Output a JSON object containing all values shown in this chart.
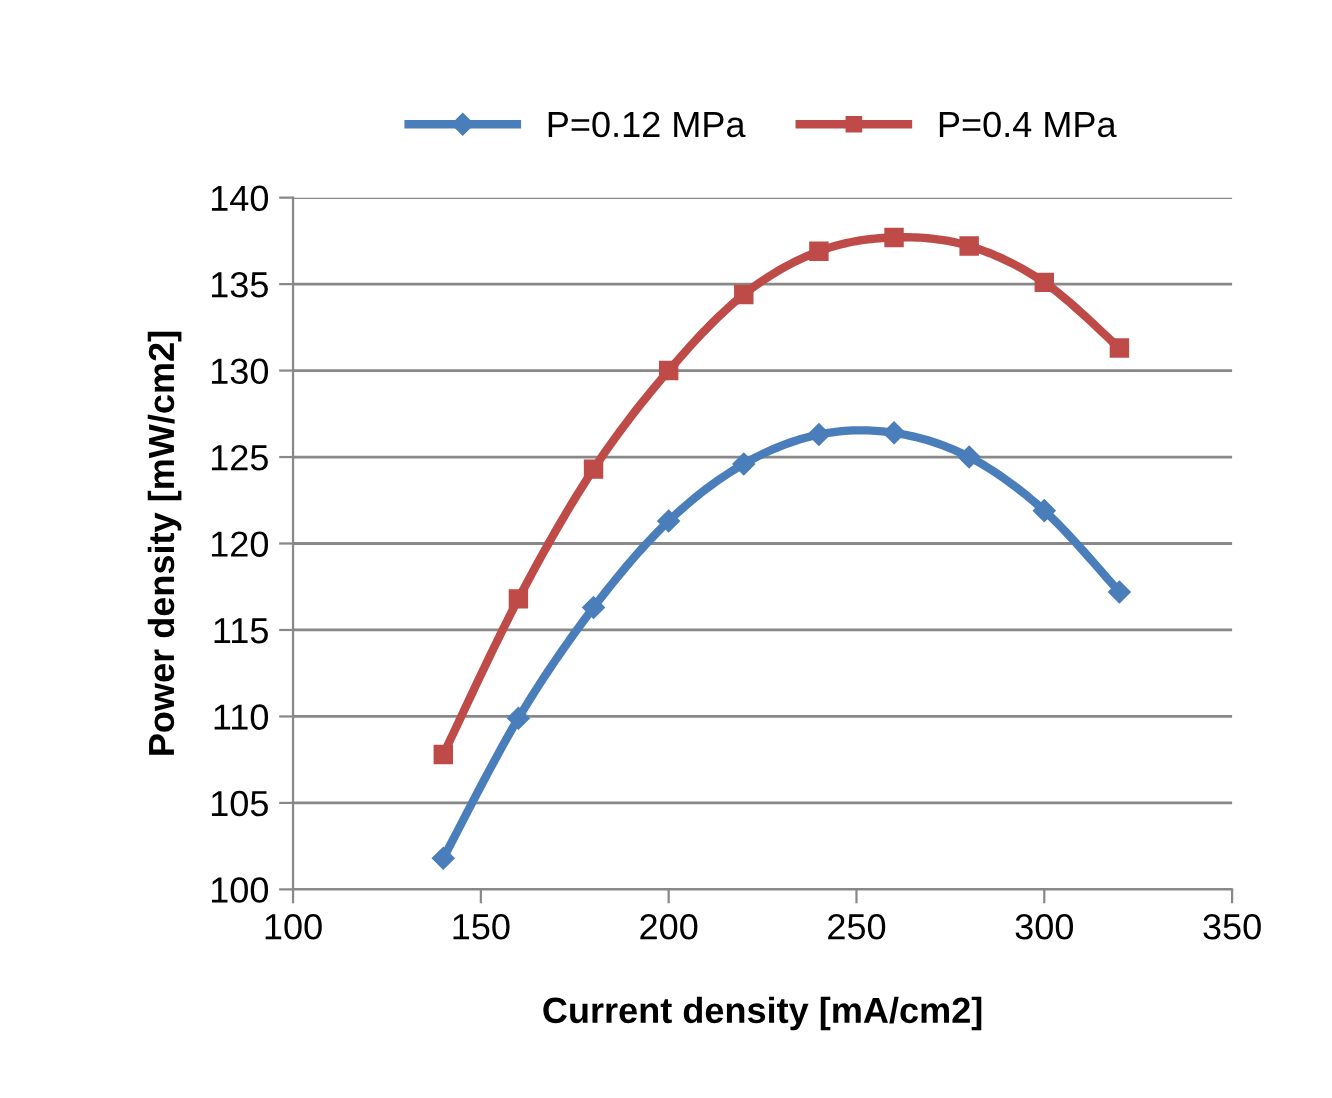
{
  "chart_data": {
    "type": "line",
    "xlabel": "Current density [mA/cm2]",
    "ylabel": "Power density [mW/cm2]",
    "x": [
      140,
      160,
      180,
      200,
      220,
      240,
      260,
      280,
      300,
      320
    ],
    "series": [
      {
        "name": "P=0.12 MPa",
        "color": "#4a7ebb",
        "marker": "diamond",
        "values": [
          101.8,
          109.9,
          116.3,
          121.3,
          124.6,
          126.3,
          126.4,
          125.0,
          121.9,
          117.2
        ]
      },
      {
        "name": "P=0.4 MPa",
        "color": "#be4b48",
        "marker": "square",
        "values": [
          107.8,
          116.8,
          124.3,
          130.0,
          134.4,
          136.9,
          137.7,
          137.2,
          135.1,
          131.3
        ]
      }
    ],
    "xlim": [
      100,
      350
    ],
    "xticks": [
      100,
      150,
      200,
      250,
      300,
      350
    ],
    "ylim": [
      100,
      140
    ],
    "yticks": [
      100,
      105,
      110,
      115,
      120,
      125,
      130,
      135,
      140
    ],
    "grid": "y",
    "legend": "top",
    "line_style": "solid"
  }
}
